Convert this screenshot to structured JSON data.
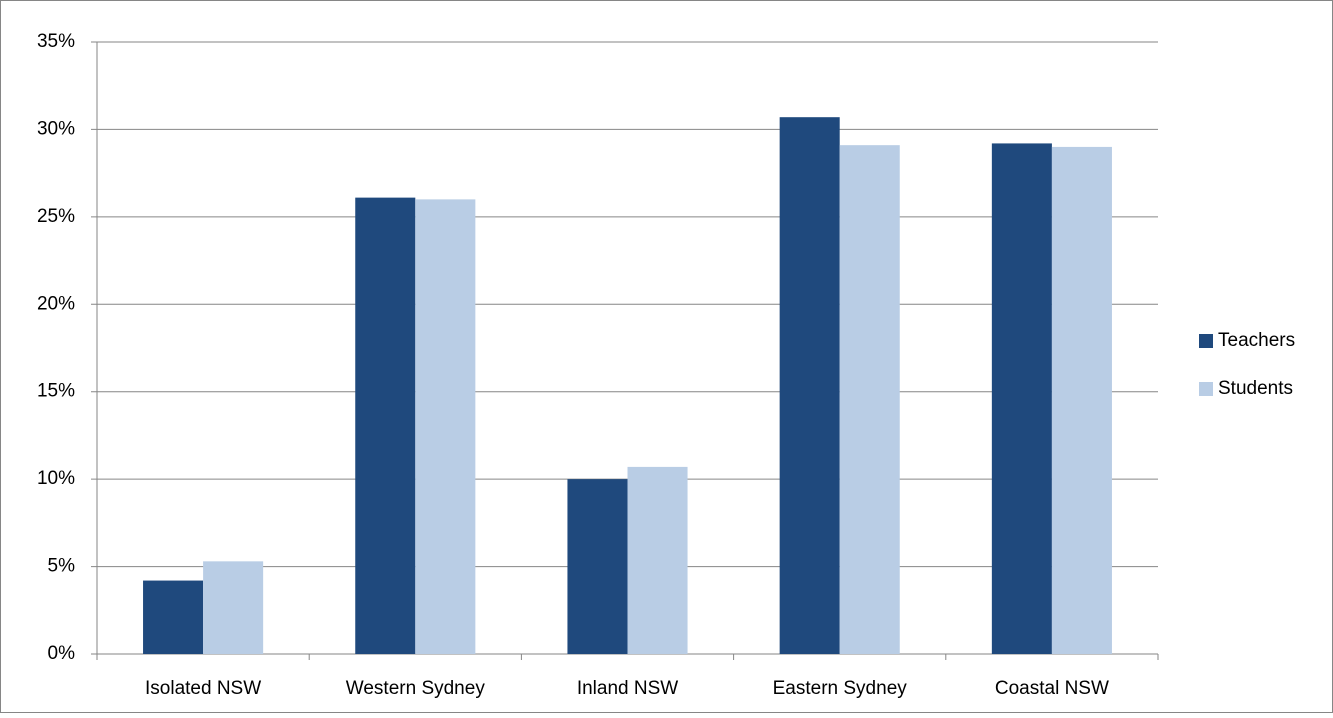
{
  "chart_data": {
    "type": "bar",
    "categories": [
      "Isolated NSW",
      "Western Sydney",
      "Inland NSW",
      "Eastern Sydney",
      "Coastal NSW"
    ],
    "series": [
      {
        "name": "Teachers",
        "color": "#1f497d",
        "values": [
          4.2,
          26.1,
          10.0,
          30.7,
          29.2
        ]
      },
      {
        "name": "Students",
        "color": "#b9cde5",
        "values": [
          5.3,
          26.0,
          10.7,
          29.1,
          29.0
        ]
      }
    ],
    "ylim": [
      0,
      35
    ],
    "yticks": [
      {
        "value": 0,
        "label": "0%"
      },
      {
        "value": 5,
        "label": "5%"
      },
      {
        "value": 10,
        "label": "10%"
      },
      {
        "value": 15,
        "label": "15%"
      },
      {
        "value": 20,
        "label": "20%"
      },
      {
        "value": 25,
        "label": "25%"
      },
      {
        "value": 30,
        "label": "30%"
      },
      {
        "value": 35,
        "label": "35%"
      }
    ],
    "grid": true,
    "legend": "right"
  }
}
